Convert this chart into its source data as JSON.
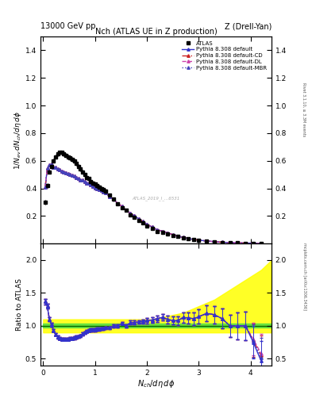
{
  "title_top_left": "13000 GeV pp",
  "title_top_right": "Z (Drell-Yan)",
  "plot_title": "Nch (ATLAS UE in Z production)",
  "xlabel": "$N_{ch}/d\\eta\\,d\\phi$",
  "ylabel_main": "$1/N_{ev}\\,dN_{ch}/d\\eta\\,d\\phi$",
  "ylabel_ratio": "Ratio to ATLAS",
  "right_label_top": "Rivet 3.1.10, ≥ 3.3M events",
  "right_label_bottom": "mcplots.cern.ch [arXiv:1306.3436]",
  "atlas_x": [
    0.04,
    0.08,
    0.12,
    0.16,
    0.2,
    0.24,
    0.28,
    0.32,
    0.36,
    0.4,
    0.44,
    0.48,
    0.52,
    0.56,
    0.6,
    0.64,
    0.68,
    0.72,
    0.76,
    0.8,
    0.84,
    0.88,
    0.92,
    0.96,
    1.0,
    1.04,
    1.08,
    1.12,
    1.16,
    1.2,
    1.28,
    1.36,
    1.44,
    1.52,
    1.6,
    1.68,
    1.76,
    1.84,
    1.92,
    2.0,
    2.1,
    2.2,
    2.3,
    2.4,
    2.5,
    2.6,
    2.7,
    2.8,
    2.9,
    3.0,
    3.15,
    3.3,
    3.45,
    3.6,
    3.75,
    3.9,
    4.05,
    4.2
  ],
  "atlas_y": [
    0.3,
    0.42,
    0.52,
    0.56,
    0.6,
    0.63,
    0.65,
    0.66,
    0.66,
    0.65,
    0.64,
    0.63,
    0.62,
    0.61,
    0.6,
    0.58,
    0.56,
    0.54,
    0.52,
    0.5,
    0.48,
    0.47,
    0.45,
    0.44,
    0.43,
    0.42,
    0.41,
    0.4,
    0.39,
    0.38,
    0.35,
    0.32,
    0.29,
    0.26,
    0.24,
    0.21,
    0.19,
    0.17,
    0.15,
    0.13,
    0.11,
    0.09,
    0.08,
    0.07,
    0.06,
    0.05,
    0.04,
    0.033,
    0.027,
    0.022,
    0.016,
    0.012,
    0.009,
    0.007,
    0.005,
    0.004,
    0.003,
    0.002
  ],
  "atlas_yerr": [
    0.015,
    0.015,
    0.015,
    0.015,
    0.015,
    0.015,
    0.015,
    0.015,
    0.015,
    0.015,
    0.015,
    0.015,
    0.015,
    0.015,
    0.015,
    0.015,
    0.015,
    0.015,
    0.015,
    0.015,
    0.015,
    0.015,
    0.015,
    0.015,
    0.015,
    0.015,
    0.015,
    0.015,
    0.015,
    0.015,
    0.012,
    0.012,
    0.012,
    0.012,
    0.01,
    0.01,
    0.009,
    0.008,
    0.007,
    0.006,
    0.005,
    0.005,
    0.004,
    0.004,
    0.003,
    0.003,
    0.003,
    0.002,
    0.002,
    0.002,
    0.001,
    0.001,
    0.001,
    0.001,
    0.001,
    0.001,
    0.001,
    0.001
  ],
  "mc_x": [
    0.04,
    0.08,
    0.12,
    0.16,
    0.2,
    0.24,
    0.28,
    0.32,
    0.36,
    0.4,
    0.44,
    0.48,
    0.52,
    0.56,
    0.6,
    0.64,
    0.68,
    0.72,
    0.76,
    0.8,
    0.84,
    0.88,
    0.92,
    0.96,
    1.0,
    1.04,
    1.08,
    1.12,
    1.16,
    1.2,
    1.28,
    1.36,
    1.44,
    1.52,
    1.6,
    1.68,
    1.76,
    1.84,
    1.92,
    2.0,
    2.1,
    2.2,
    2.3,
    2.4,
    2.5,
    2.6,
    2.7,
    2.8,
    2.9,
    3.0,
    3.15,
    3.3,
    3.45,
    3.6,
    3.75,
    3.9,
    4.05,
    4.2
  ],
  "py_default_y": [
    0.41,
    0.545,
    0.57,
    0.575,
    0.555,
    0.55,
    0.54,
    0.535,
    0.525,
    0.52,
    0.515,
    0.505,
    0.5,
    0.495,
    0.49,
    0.48,
    0.47,
    0.46,
    0.46,
    0.45,
    0.44,
    0.435,
    0.425,
    0.415,
    0.405,
    0.4,
    0.39,
    0.385,
    0.375,
    0.37,
    0.34,
    0.32,
    0.29,
    0.27,
    0.24,
    0.22,
    0.2,
    0.18,
    0.16,
    0.14,
    0.12,
    0.1,
    0.09,
    0.077,
    0.065,
    0.054,
    0.045,
    0.037,
    0.03,
    0.025,
    0.019,
    0.014,
    0.01,
    0.007,
    0.005,
    0.004,
    0.003,
    0.0015
  ],
  "py_cd_y": [
    0.41,
    0.545,
    0.57,
    0.575,
    0.555,
    0.55,
    0.54,
    0.535,
    0.525,
    0.52,
    0.515,
    0.505,
    0.5,
    0.495,
    0.49,
    0.48,
    0.47,
    0.46,
    0.46,
    0.45,
    0.44,
    0.435,
    0.425,
    0.415,
    0.405,
    0.4,
    0.39,
    0.385,
    0.375,
    0.37,
    0.34,
    0.32,
    0.29,
    0.27,
    0.24,
    0.22,
    0.2,
    0.18,
    0.16,
    0.14,
    0.12,
    0.1,
    0.09,
    0.077,
    0.065,
    0.054,
    0.045,
    0.037,
    0.03,
    0.025,
    0.019,
    0.014,
    0.01,
    0.007,
    0.005,
    0.004,
    0.003,
    0.0018
  ],
  "py_dl_y": [
    0.41,
    0.545,
    0.57,
    0.575,
    0.555,
    0.55,
    0.54,
    0.535,
    0.525,
    0.52,
    0.515,
    0.505,
    0.5,
    0.495,
    0.49,
    0.48,
    0.47,
    0.46,
    0.46,
    0.45,
    0.44,
    0.435,
    0.425,
    0.415,
    0.405,
    0.4,
    0.39,
    0.385,
    0.375,
    0.37,
    0.34,
    0.32,
    0.29,
    0.27,
    0.24,
    0.22,
    0.2,
    0.18,
    0.16,
    0.14,
    0.12,
    0.1,
    0.09,
    0.077,
    0.065,
    0.054,
    0.045,
    0.037,
    0.03,
    0.025,
    0.019,
    0.014,
    0.01,
    0.007,
    0.005,
    0.004,
    0.003,
    0.0017
  ],
  "py_mbr_y": [
    0.41,
    0.545,
    0.57,
    0.575,
    0.555,
    0.55,
    0.54,
    0.535,
    0.525,
    0.52,
    0.515,
    0.505,
    0.5,
    0.495,
    0.49,
    0.48,
    0.47,
    0.46,
    0.46,
    0.45,
    0.44,
    0.435,
    0.425,
    0.415,
    0.405,
    0.4,
    0.39,
    0.385,
    0.375,
    0.37,
    0.34,
    0.32,
    0.29,
    0.27,
    0.24,
    0.22,
    0.2,
    0.18,
    0.16,
    0.14,
    0.12,
    0.1,
    0.09,
    0.077,
    0.065,
    0.054,
    0.045,
    0.037,
    0.03,
    0.025,
    0.019,
    0.014,
    0.01,
    0.007,
    0.005,
    0.004,
    0.003,
    0.0016
  ],
  "ratio_x": [
    0.04,
    0.08,
    0.12,
    0.16,
    0.2,
    0.24,
    0.28,
    0.32,
    0.36,
    0.4,
    0.44,
    0.48,
    0.52,
    0.56,
    0.6,
    0.64,
    0.68,
    0.72,
    0.76,
    0.8,
    0.84,
    0.88,
    0.92,
    0.96,
    1.0,
    1.04,
    1.08,
    1.12,
    1.16,
    1.2,
    1.28,
    1.36,
    1.44,
    1.52,
    1.6,
    1.68,
    1.76,
    1.84,
    1.92,
    2.0,
    2.1,
    2.2,
    2.3,
    2.4,
    2.5,
    2.6,
    2.7,
    2.8,
    2.9,
    3.0,
    3.15,
    3.3,
    3.45,
    3.6,
    3.75,
    3.9,
    4.05,
    4.2
  ],
  "ratio_default": [
    1.37,
    1.3,
    1.1,
    1.02,
    0.93,
    0.87,
    0.83,
    0.81,
    0.8,
    0.8,
    0.8,
    0.8,
    0.81,
    0.81,
    0.82,
    0.83,
    0.84,
    0.85,
    0.88,
    0.9,
    0.92,
    0.93,
    0.94,
    0.94,
    0.94,
    0.95,
    0.95,
    0.96,
    0.96,
    0.97,
    0.97,
    1.0,
    1.0,
    1.04,
    1.0,
    1.05,
    1.05,
    1.06,
    1.07,
    1.08,
    1.09,
    1.11,
    1.13,
    1.1,
    1.08,
    1.08,
    1.13,
    1.12,
    1.11,
    1.14,
    1.19,
    1.17,
    1.11,
    1.0,
    1.0,
    1.0,
    0.75,
    0.47
  ],
  "ratio_cd": [
    1.37,
    1.3,
    1.1,
    1.02,
    0.93,
    0.87,
    0.83,
    0.81,
    0.8,
    0.8,
    0.8,
    0.8,
    0.81,
    0.81,
    0.82,
    0.83,
    0.84,
    0.85,
    0.88,
    0.9,
    0.92,
    0.93,
    0.94,
    0.94,
    0.94,
    0.95,
    0.95,
    0.96,
    0.96,
    0.97,
    0.97,
    1.0,
    1.0,
    1.04,
    1.0,
    1.05,
    1.05,
    1.06,
    1.07,
    1.08,
    1.09,
    1.11,
    1.13,
    1.1,
    1.08,
    1.08,
    1.13,
    1.12,
    1.11,
    1.14,
    1.19,
    1.17,
    1.11,
    1.0,
    1.0,
    1.0,
    0.78,
    0.55
  ],
  "ratio_dl": [
    1.37,
    1.3,
    1.1,
    1.02,
    0.93,
    0.87,
    0.83,
    0.81,
    0.8,
    0.8,
    0.8,
    0.8,
    0.81,
    0.81,
    0.82,
    0.83,
    0.84,
    0.85,
    0.88,
    0.9,
    0.92,
    0.93,
    0.94,
    0.94,
    0.94,
    0.95,
    0.95,
    0.96,
    0.96,
    0.97,
    0.97,
    1.0,
    1.0,
    1.04,
    1.0,
    1.05,
    1.05,
    1.06,
    1.07,
    1.08,
    1.09,
    1.11,
    1.13,
    1.1,
    1.08,
    1.08,
    1.13,
    1.12,
    1.11,
    1.14,
    1.19,
    1.17,
    1.11,
    1.0,
    1.0,
    1.0,
    0.8,
    0.58
  ],
  "ratio_mbr": [
    1.37,
    1.3,
    1.1,
    1.02,
    0.93,
    0.87,
    0.83,
    0.81,
    0.8,
    0.8,
    0.8,
    0.8,
    0.81,
    0.81,
    0.82,
    0.83,
    0.84,
    0.85,
    0.88,
    0.9,
    0.92,
    0.93,
    0.94,
    0.94,
    0.94,
    0.95,
    0.95,
    0.96,
    0.96,
    0.97,
    0.97,
    1.0,
    1.0,
    1.04,
    1.0,
    1.05,
    1.05,
    1.06,
    1.07,
    1.08,
    1.09,
    1.11,
    1.13,
    1.1,
    1.08,
    1.08,
    1.13,
    1.12,
    1.11,
    1.14,
    1.19,
    1.17,
    1.11,
    1.0,
    1.0,
    1.0,
    0.77,
    0.52
  ],
  "ratio_yerr": [
    0.04,
    0.04,
    0.03,
    0.03,
    0.02,
    0.02,
    0.02,
    0.02,
    0.02,
    0.02,
    0.02,
    0.02,
    0.02,
    0.02,
    0.02,
    0.02,
    0.02,
    0.02,
    0.02,
    0.02,
    0.02,
    0.02,
    0.02,
    0.02,
    0.02,
    0.02,
    0.02,
    0.02,
    0.02,
    0.02,
    0.02,
    0.02,
    0.02,
    0.02,
    0.02,
    0.03,
    0.03,
    0.03,
    0.03,
    0.04,
    0.04,
    0.05,
    0.05,
    0.06,
    0.06,
    0.07,
    0.08,
    0.09,
    0.1,
    0.11,
    0.12,
    0.13,
    0.15,
    0.17,
    0.2,
    0.22,
    0.25,
    0.3
  ],
  "band_x": [
    0.0,
    0.3,
    0.6,
    0.9,
    1.2,
    1.5,
    1.8,
    2.1,
    2.4,
    2.7,
    3.0,
    3.3,
    3.6,
    3.9,
    4.2,
    4.4
  ],
  "band_green_lo": [
    0.97,
    0.97,
    0.97,
    0.97,
    0.97,
    0.97,
    0.97,
    0.97,
    0.97,
    0.97,
    0.97,
    0.97,
    0.97,
    0.97,
    0.97,
    0.97
  ],
  "band_green_hi": [
    1.03,
    1.03,
    1.03,
    1.03,
    1.03,
    1.03,
    1.03,
    1.03,
    1.03,
    1.03,
    1.03,
    1.03,
    1.03,
    1.03,
    1.03,
    1.03
  ],
  "band_yellow_lo": [
    0.9,
    0.9,
    0.9,
    0.9,
    0.9,
    0.9,
    0.9,
    0.9,
    0.9,
    0.9,
    0.9,
    0.9,
    0.9,
    0.9,
    0.9,
    0.9
  ],
  "band_yellow_hi": [
    1.1,
    1.1,
    1.1,
    1.1,
    1.1,
    1.1,
    1.1,
    1.1,
    1.15,
    1.2,
    1.3,
    1.4,
    1.55,
    1.7,
    1.85,
    2.0
  ],
  "color_default": "#3333cc",
  "color_cd": "#cc2222",
  "color_dl": "#cc44aa",
  "color_mbr": "#4444bb",
  "main_ylim": [
    0.0,
    1.5
  ],
  "ratio_ylim": [
    0.4,
    2.25
  ],
  "ratio_yticks": [
    0.5,
    1.0,
    1.5,
    2.0
  ],
  "xlim": [
    -0.05,
    4.4
  ],
  "xticks": [
    0,
    1,
    2,
    3,
    4
  ],
  "background_color": "#ffffff"
}
